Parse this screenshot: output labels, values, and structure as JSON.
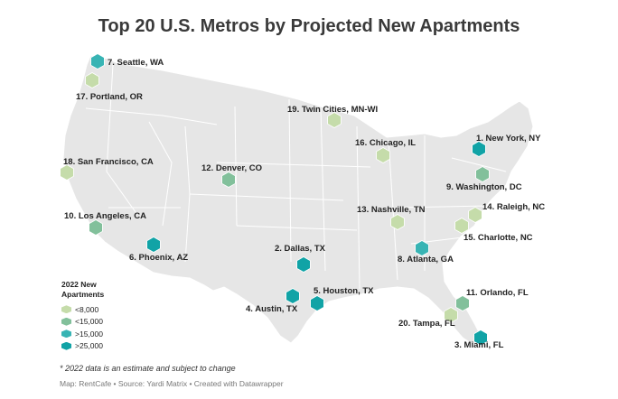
{
  "title": "Top 20 U.S. Metros by Projected New Apartments",
  "legend": {
    "title_line1": "2022 New",
    "title_line2": "Apartments",
    "items": [
      {
        "label": "<8,000",
        "color": "#c5dcaa"
      },
      {
        "label": "<15,000",
        "color": "#82c09b"
      },
      {
        "label": ">15,000",
        "color": "#38b4b4"
      },
      {
        "label": ">25,000",
        "color": "#11a3a6"
      }
    ]
  },
  "metros": [
    {
      "label": "1. New York, NY",
      "tier": 3
    },
    {
      "label": "2. Dallas, TX",
      "tier": 3
    },
    {
      "label": "3. Miami, FL",
      "tier": 3
    },
    {
      "label": "4. Austin, TX",
      "tier": 3
    },
    {
      "label": "5. Houston, TX",
      "tier": 3
    },
    {
      "label": "6. Phoenix, AZ",
      "tier": 3
    },
    {
      "label": "7. Seattle, WA",
      "tier": 2
    },
    {
      "label": "8. Atlanta, GA",
      "tier": 2
    },
    {
      "label": "9. Washington, DC",
      "tier": 1
    },
    {
      "label": "10. Los Angeles, CA",
      "tier": 1
    },
    {
      "label": "11. Orlando, FL",
      "tier": 1
    },
    {
      "label": "12. Denver, CO",
      "tier": 1
    },
    {
      "label": "13. Nashville, TN",
      "tier": 0
    },
    {
      "label": "14. Raleigh, NC",
      "tier": 0
    },
    {
      "label": "15. Charlotte, NC",
      "tier": 0
    },
    {
      "label": "16. Chicago, IL",
      "tier": 0
    },
    {
      "label": "17. Portland, OR",
      "tier": 0
    },
    {
      "label": "18. San Francisco, CA",
      "tier": 0
    },
    {
      "label": "19. Twin Cities, MN-WI",
      "tier": 0
    },
    {
      "label": "20. Tampa, FL",
      "tier": 0
    }
  ],
  "note": "* 2022 data is an estimate and subject to change",
  "credit": "Map: RentCafe • Source: Yardi Matrix • Created with Datawrapper"
}
